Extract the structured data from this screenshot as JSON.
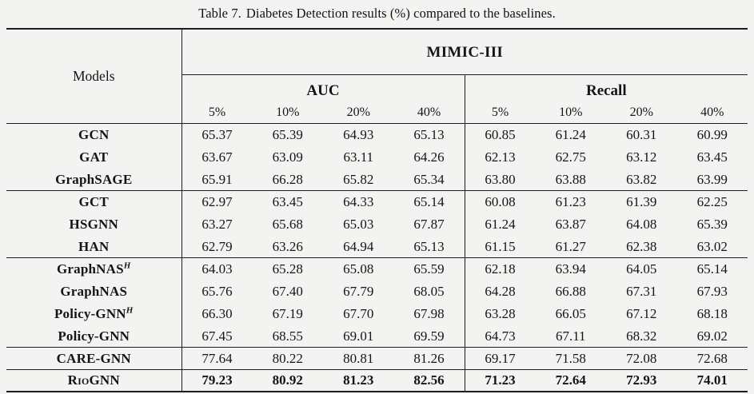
{
  "caption": {
    "label": "Table 7.",
    "text": "Diabetes Detection results (%) compared to the baselines."
  },
  "table": {
    "models_header": "Models",
    "dataset_header": "MIMIC-III",
    "group_headers": [
      "AUC",
      "Recall"
    ],
    "pct_headers": [
      "5%",
      "10%",
      "20%",
      "40%",
      "5%",
      "10%",
      "20%",
      "40%"
    ],
    "rows": [
      {
        "model": "GCN",
        "sup": "",
        "smallcaps": false,
        "emphasis": false,
        "rule_after": false,
        "values": [
          "65.37",
          "65.39",
          "64.93",
          "65.13",
          "60.85",
          "61.24",
          "60.31",
          "60.99"
        ]
      },
      {
        "model": "GAT",
        "sup": "",
        "smallcaps": false,
        "emphasis": false,
        "rule_after": false,
        "values": [
          "63.67",
          "63.09",
          "63.11",
          "64.26",
          "62.13",
          "62.75",
          "63.12",
          "63.45"
        ]
      },
      {
        "model": "GraphSAGE",
        "sup": "",
        "smallcaps": false,
        "emphasis": false,
        "rule_after": true,
        "values": [
          "65.91",
          "66.28",
          "65.82",
          "65.34",
          "63.80",
          "63.88",
          "63.82",
          "63.99"
        ]
      },
      {
        "model": "GCT",
        "sup": "",
        "smallcaps": false,
        "emphasis": false,
        "rule_after": false,
        "values": [
          "62.97",
          "63.45",
          "64.33",
          "65.14",
          "60.08",
          "61.23",
          "61.39",
          "62.25"
        ]
      },
      {
        "model": "HSGNN",
        "sup": "",
        "smallcaps": false,
        "emphasis": false,
        "rule_after": false,
        "values": [
          "63.27",
          "65.68",
          "65.03",
          "67.87",
          "61.24",
          "63.87",
          "64.08",
          "65.39"
        ]
      },
      {
        "model": "HAN",
        "sup": "",
        "smallcaps": false,
        "emphasis": false,
        "rule_after": true,
        "values": [
          "62.79",
          "63.26",
          "64.94",
          "65.13",
          "61.15",
          "61.27",
          "62.38",
          "63.02"
        ]
      },
      {
        "model": "GraphNAS",
        "sup": "H",
        "smallcaps": false,
        "emphasis": false,
        "rule_after": false,
        "values": [
          "64.03",
          "65.28",
          "65.08",
          "65.59",
          "62.18",
          "63.94",
          "64.05",
          "65.14"
        ]
      },
      {
        "model": "GraphNAS",
        "sup": "",
        "smallcaps": false,
        "emphasis": false,
        "rule_after": false,
        "values": [
          "65.76",
          "67.40",
          "67.79",
          "68.05",
          "64.28",
          "66.88",
          "67.31",
          "67.93"
        ]
      },
      {
        "model": "Policy-GNN",
        "sup": "H",
        "smallcaps": false,
        "emphasis": false,
        "rule_after": false,
        "values": [
          "66.30",
          "67.19",
          "67.70",
          "67.98",
          "63.28",
          "66.05",
          "67.12",
          "68.18"
        ]
      },
      {
        "model": "Policy-GNN",
        "sup": "",
        "smallcaps": false,
        "emphasis": false,
        "rule_after": true,
        "values": [
          "67.45",
          "68.55",
          "69.01",
          "69.59",
          "64.73",
          "67.11",
          "68.32",
          "69.02"
        ]
      },
      {
        "model": "CARE-GNN",
        "sup": "",
        "smallcaps": false,
        "emphasis": false,
        "rule_after": true,
        "values": [
          "77.64",
          "80.22",
          "80.81",
          "81.26",
          "69.17",
          "71.58",
          "72.08",
          "72.68"
        ]
      },
      {
        "model": "RioGNN",
        "sup": "",
        "smallcaps": true,
        "emphasis": true,
        "rule_after": false,
        "values": [
          "79.23",
          "80.92",
          "81.23",
          "82.56",
          "71.23",
          "72.64",
          "72.93",
          "74.01"
        ]
      }
    ]
  }
}
